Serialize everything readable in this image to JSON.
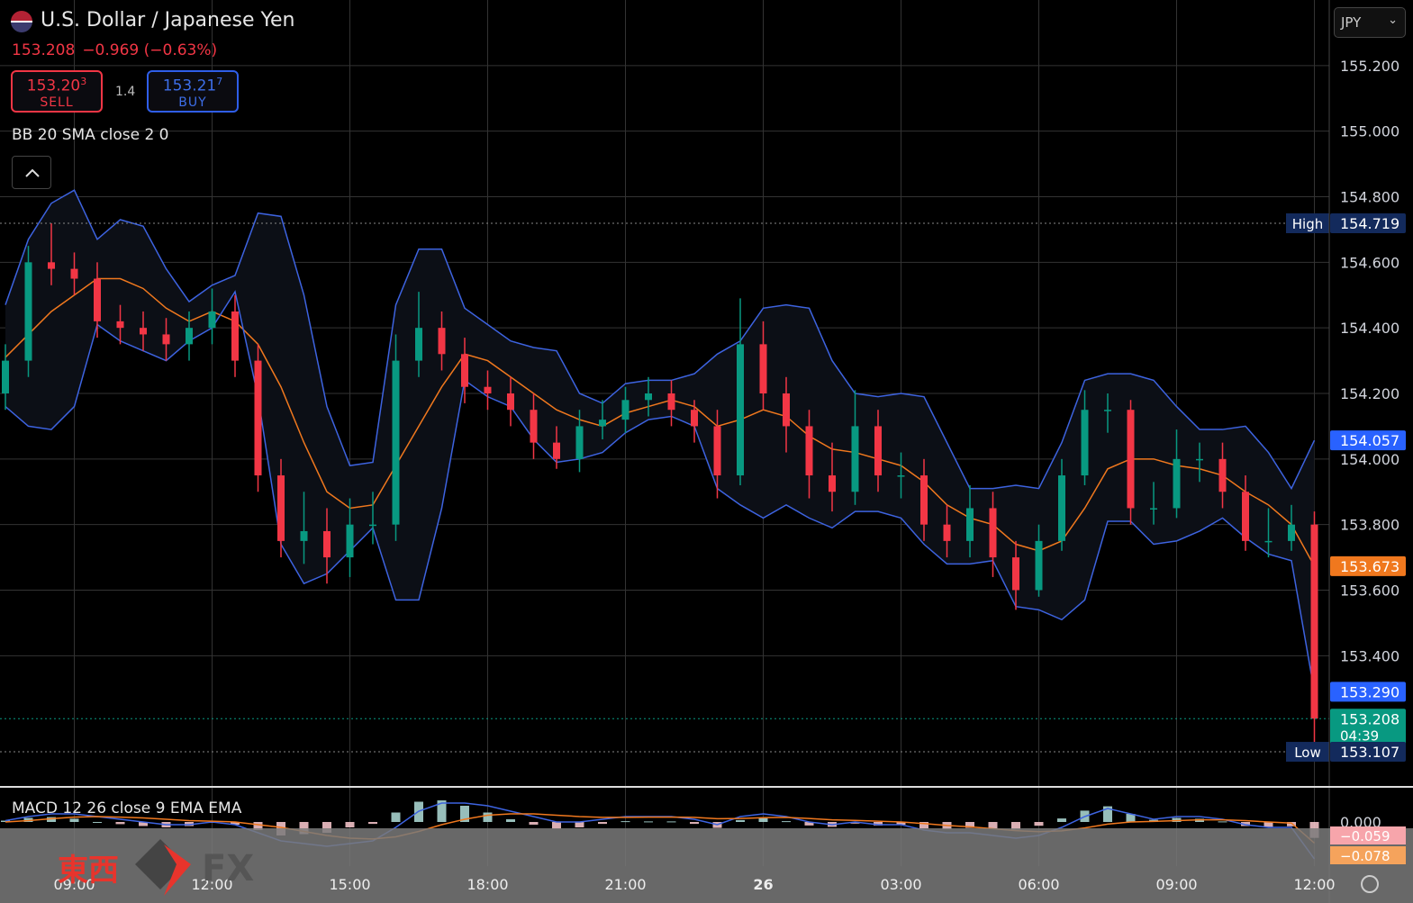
{
  "header": {
    "title": "U.S. Dollar / Japanese Yen",
    "last": "153.208",
    "change": "−0.969 (−0.63%)",
    "sell": {
      "price": "153.20",
      "pip": "3",
      "label": "SELL"
    },
    "buy": {
      "price": "153.21",
      "pip": "7",
      "label": "BUY"
    },
    "spread": "1.4",
    "currency": "JPY",
    "indicator": "BB 20 SMA close 2 0"
  },
  "watermark": {
    "brand": "東西",
    "fx": "FX"
  },
  "chart_data": {
    "type": "candlestick",
    "xticks": [
      "09:00",
      "12:00",
      "15:00",
      "18:00",
      "21:00",
      "26",
      "03:00",
      "06:00",
      "09:00",
      "12:00"
    ],
    "ylim": [
      153.0,
      155.4
    ],
    "yticks": [
      {
        "value": 153.4,
        "label": "153.400"
      },
      {
        "value": 153.6,
        "label": "153.600"
      },
      {
        "value": 153.8,
        "label": "153.800"
      },
      {
        "value": 154.0,
        "label": "154.000"
      },
      {
        "value": 154.2,
        "label": "154.200"
      },
      {
        "value": 154.4,
        "label": "154.400"
      },
      {
        "value": 154.6,
        "label": "154.600"
      },
      {
        "value": 154.8,
        "label": "154.800"
      },
      {
        "value": 155.0,
        "label": "155.000"
      },
      {
        "value": 155.2,
        "label": "155.200"
      }
    ],
    "grid": true,
    "up_color": "#089981",
    "down_color": "#f23645",
    "open": [
      154.2,
      154.3,
      154.6,
      154.58,
      154.55,
      154.42,
      154.4,
      154.38,
      154.35,
      154.4,
      154.45,
      154.3,
      153.95,
      153.75,
      153.78,
      153.7,
      153.8,
      153.8,
      154.3,
      154.4,
      154.32,
      154.22,
      154.2,
      154.15,
      154.05,
      154.0,
      154.1,
      154.12,
      154.18,
      154.2,
      154.15,
      154.1,
      153.95,
      154.35,
      154.2,
      154.1,
      153.95,
      153.9,
      154.1,
      153.95,
      153.95,
      153.8,
      153.75,
      153.85,
      153.7,
      153.6,
      153.75,
      153.95,
      154.15,
      154.15,
      153.85,
      153.85,
      154.0,
      154.0,
      153.9,
      153.75,
      153.75,
      153.8
    ],
    "high": [
      154.35,
      154.65,
      154.719,
      154.63,
      154.6,
      154.47,
      154.45,
      154.43,
      154.45,
      154.52,
      154.5,
      154.35,
      154.0,
      153.9,
      153.85,
      153.88,
      153.9,
      154.38,
      154.51,
      154.45,
      154.37,
      154.27,
      154.25,
      154.2,
      154.1,
      154.15,
      154.18,
      154.22,
      154.25,
      154.24,
      154.18,
      154.15,
      154.49,
      154.42,
      154.25,
      154.15,
      154.05,
      154.21,
      154.15,
      154.02,
      154.0,
      153.86,
      153.92,
      153.9,
      153.75,
      153.8,
      154.0,
      154.21,
      154.2,
      154.18,
      153.93,
      154.09,
      154.05,
      154.05,
      153.95,
      153.85,
      153.86,
      153.84
    ],
    "low": [
      154.15,
      154.25,
      154.53,
      154.5,
      154.37,
      154.35,
      154.33,
      154.3,
      154.3,
      154.35,
      154.25,
      153.9,
      153.7,
      153.68,
      153.62,
      153.64,
      153.74,
      153.75,
      154.25,
      154.27,
      154.17,
      154.15,
      154.1,
      154.0,
      153.97,
      153.96,
      154.06,
      154.08,
      154.13,
      154.1,
      154.05,
      153.88,
      153.92,
      154.15,
      154.02,
      153.88,
      153.84,
      153.86,
      153.9,
      153.88,
      153.75,
      153.7,
      153.7,
      153.64,
      153.54,
      153.58,
      153.72,
      153.92,
      154.08,
      153.8,
      153.8,
      153.82,
      153.93,
      153.85,
      153.72,
      153.7,
      153.72,
      153.107
    ],
    "close": [
      154.3,
      154.6,
      154.58,
      154.55,
      154.42,
      154.4,
      154.38,
      154.35,
      154.4,
      154.45,
      154.3,
      153.95,
      153.75,
      153.78,
      153.7,
      153.8,
      153.8,
      154.3,
      154.4,
      154.32,
      154.22,
      154.2,
      154.15,
      154.05,
      154.0,
      154.1,
      154.12,
      154.18,
      154.2,
      154.15,
      154.1,
      153.95,
      154.35,
      154.2,
      154.1,
      153.95,
      153.9,
      154.1,
      153.95,
      153.95,
      153.8,
      153.75,
      153.85,
      153.7,
      153.6,
      153.75,
      153.95,
      154.15,
      154.15,
      153.85,
      153.85,
      154.0,
      154.0,
      153.9,
      153.75,
      153.75,
      153.8,
      153.208
    ],
    "bands": {
      "fill": "#0c0f16",
      "upper": {
        "color": "#3d63e0",
        "values": [
          154.47,
          154.67,
          154.78,
          154.82,
          154.67,
          154.73,
          154.71,
          154.58,
          154.48,
          154.53,
          154.56,
          154.75,
          154.74,
          154.5,
          154.16,
          153.98,
          153.99,
          154.47,
          154.64,
          154.64,
          154.46,
          154.41,
          154.36,
          154.34,
          154.33,
          154.2,
          154.17,
          154.23,
          154.24,
          154.24,
          154.26,
          154.32,
          154.36,
          154.46,
          154.47,
          154.46,
          154.3,
          154.2,
          154.19,
          154.2,
          154.19,
          154.05,
          153.91,
          153.91,
          153.92,
          153.91,
          154.05,
          154.24,
          154.26,
          154.26,
          154.24,
          154.16,
          154.09,
          154.09,
          154.1,
          154.02,
          153.91,
          154.057
        ]
      },
      "middle": {
        "color": "#f0781e",
        "values": [
          154.31,
          154.38,
          154.45,
          154.5,
          154.55,
          154.55,
          154.52,
          154.46,
          154.42,
          154.45,
          154.42,
          154.35,
          154.22,
          154.05,
          153.9,
          153.85,
          153.86,
          153.98,
          154.1,
          154.22,
          154.32,
          154.3,
          154.25,
          154.2,
          154.15,
          154.12,
          154.1,
          154.14,
          154.16,
          154.18,
          154.16,
          154.1,
          154.12,
          154.15,
          154.13,
          154.07,
          154.03,
          154.02,
          154.0,
          153.98,
          153.93,
          153.86,
          153.82,
          153.8,
          153.74,
          153.72,
          153.75,
          153.85,
          153.97,
          154.0,
          154.0,
          153.98,
          153.97,
          153.95,
          153.9,
          153.86,
          153.8,
          153.673
        ]
      },
      "lower": {
        "color": "#3d63e0",
        "values": [
          154.16,
          154.1,
          154.09,
          154.16,
          154.41,
          154.36,
          154.33,
          154.3,
          154.36,
          154.4,
          154.51,
          154.19,
          153.74,
          153.62,
          153.65,
          153.72,
          153.79,
          153.57,
          153.57,
          153.85,
          154.24,
          154.19,
          154.16,
          154.06,
          153.99,
          154.0,
          154.02,
          154.08,
          154.12,
          154.13,
          154.1,
          153.91,
          153.86,
          153.82,
          153.86,
          153.82,
          153.79,
          153.84,
          153.84,
          153.82,
          153.74,
          153.68,
          153.68,
          153.69,
          153.55,
          153.54,
          153.51,
          153.57,
          153.81,
          153.81,
          153.74,
          153.75,
          153.78,
          153.82,
          153.76,
          153.71,
          153.69,
          153.29
        ]
      }
    },
    "badges": [
      {
        "name": "High",
        "value": 154.719,
        "label": "154.719",
        "color": "#132a5c"
      },
      {
        "value": 154.057,
        "label": "154.057",
        "color": "#2962ff"
      },
      {
        "value": 153.673,
        "label": "153.673",
        "color": "#f0781e"
      },
      {
        "value": 153.29,
        "label": "153.290",
        "color": "#2962ff"
      },
      {
        "value": 153.208,
        "label": "153.208",
        "countdown": "04:39",
        "color": "#089981"
      },
      {
        "name": "Low",
        "value": 153.107,
        "label": "153.107",
        "color": "#132a5c"
      }
    ],
    "macd": {
      "title": "MACD 12 26 close 9 EMA EMA",
      "yticks": [
        {
          "value": 0,
          "label": "0.000"
        }
      ],
      "macd": {
        "color": "#3d63e0",
        "values": [
          0.005,
          0.02,
          0.03,
          0.03,
          0.02,
          0.01,
          0.0,
          -0.01,
          -0.01,
          0.0,
          -0.01,
          -0.04,
          -0.07,
          -0.08,
          -0.09,
          -0.08,
          -0.07,
          -0.02,
          0.04,
          0.07,
          0.07,
          0.06,
          0.04,
          0.02,
          0.0,
          0.0,
          0.01,
          0.02,
          0.02,
          0.02,
          0.01,
          -0.01,
          0.02,
          0.03,
          0.02,
          0.0,
          -0.01,
          0.0,
          -0.01,
          -0.01,
          -0.03,
          -0.04,
          -0.04,
          -0.05,
          -0.06,
          -0.05,
          -0.02,
          0.02,
          0.05,
          0.03,
          0.01,
          0.02,
          0.02,
          0.01,
          -0.01,
          -0.02,
          -0.02,
          -0.137
        ]
      },
      "signal": {
        "color": "#f0781e",
        "values": [
          0.0,
          0.005,
          0.012,
          0.018,
          0.02,
          0.018,
          0.015,
          0.01,
          0.005,
          0.003,
          0.0,
          -0.01,
          -0.02,
          -0.035,
          -0.05,
          -0.06,
          -0.063,
          -0.055,
          -0.035,
          -0.01,
          0.01,
          0.025,
          0.03,
          0.03,
          0.025,
          0.02,
          0.017,
          0.017,
          0.018,
          0.018,
          0.017,
          0.012,
          0.013,
          0.016,
          0.017,
          0.013,
          0.008,
          0.006,
          0.003,
          0.0,
          -0.006,
          -0.013,
          -0.018,
          -0.025,
          -0.032,
          -0.036,
          -0.033,
          -0.022,
          -0.008,
          0.0,
          0.002,
          0.005,
          0.008,
          0.008,
          0.005,
          0.0,
          -0.004,
          -0.078
        ]
      },
      "histogram": {
        "up_color": "#b2dfdb",
        "down_color": "#ffcdd2",
        "values": [
          0.005,
          0.015,
          0.018,
          0.012,
          0,
          -0.008,
          -0.015,
          -0.02,
          -0.015,
          -0.003,
          -0.01,
          -0.03,
          -0.05,
          -0.045,
          -0.04,
          -0.02,
          -0.007,
          0.035,
          0.075,
          0.08,
          0.06,
          0.035,
          0.01,
          -0.01,
          -0.025,
          -0.02,
          -0.007,
          0.003,
          0.002,
          0.002,
          -0.007,
          -0.022,
          0.007,
          0.014,
          0.003,
          -0.013,
          -0.018,
          -0.006,
          -0.013,
          -0.01,
          -0.024,
          -0.027,
          -0.022,
          -0.025,
          -0.028,
          -0.014,
          0.013,
          0.042,
          0.058,
          0.03,
          0.008,
          0.015,
          0.012,
          0.002,
          -0.015,
          -0.02,
          -0.016,
          -0.059
        ]
      },
      "badges": [
        {
          "value": -0.059,
          "label": "−0.059",
          "color": "#f7a5ab"
        },
        {
          "value": -0.078,
          "label": "−0.078",
          "color": "#f5a35c"
        }
      ]
    }
  }
}
